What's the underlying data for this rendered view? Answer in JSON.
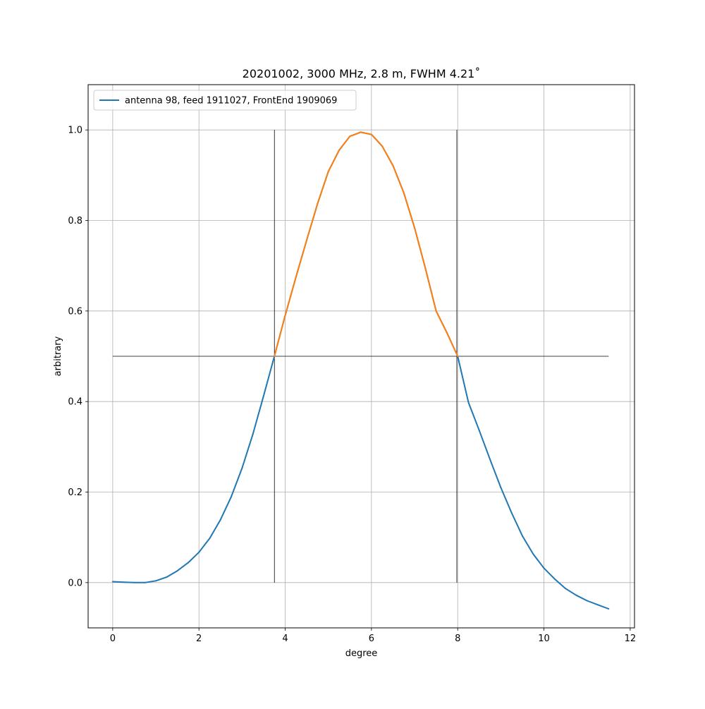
{
  "chart_data": {
    "type": "line",
    "title": "20201002, 3000 MHz, 2.8 m, FWHM 4.21˚",
    "xlabel": "degree",
    "ylabel": "arbitrary",
    "xlim": [
      -0.57,
      12.1
    ],
    "ylim": [
      -0.1,
      1.1
    ],
    "x_ticks": [
      0,
      2,
      4,
      6,
      8,
      10,
      12
    ],
    "x_tick_labels": [
      "0",
      "2",
      "4",
      "6",
      "8",
      "10",
      "12"
    ],
    "y_ticks": [
      0.0,
      0.2,
      0.4,
      0.6,
      0.8,
      1.0
    ],
    "y_tick_labels": [
      "0.0",
      "0.2",
      "0.4",
      "0.6",
      "0.8",
      "1.0"
    ],
    "grid": true,
    "legend_position": "top-left",
    "series": [
      {
        "name": "antenna 98, feed 1911027, FrontEnd 1909069",
        "color": "#1f77b4",
        "x": [
          0,
          0.25,
          0.5,
          0.75,
          1.0,
          1.25,
          1.5,
          1.75,
          2.0,
          2.25,
          2.5,
          2.75,
          3.0,
          3.25,
          3.5,
          3.75,
          4.0,
          4.25,
          4.5,
          4.75,
          5.0,
          5.25,
          5.5,
          5.75,
          6.0,
          6.25,
          6.5,
          6.75,
          7.0,
          7.25,
          7.5,
          7.75,
          8.0,
          8.25,
          8.5,
          8.75,
          9.0,
          9.25,
          9.5,
          9.75,
          10.0,
          10.25,
          10.5,
          10.75,
          11.0,
          11.25,
          11.5
        ],
        "y": [
          0.002,
          0.001,
          0.0,
          0.0,
          0.004,
          0.012,
          0.026,
          0.044,
          0.067,
          0.098,
          0.139,
          0.19,
          0.253,
          0.328,
          0.413,
          0.5,
          0.59,
          0.675,
          0.757,
          0.837,
          0.908,
          0.955,
          0.986,
          0.995,
          0.99,
          0.964,
          0.921,
          0.861,
          0.784,
          0.695,
          0.6,
          0.552,
          0.5,
          0.398,
          0.336,
          0.272,
          0.21,
          0.154,
          0.103,
          0.063,
          0.032,
          0.008,
          -0.013,
          -0.028,
          -0.04,
          -0.049,
          -0.058
        ]
      },
      {
        "name": "",
        "color": "#ff7f0e",
        "x": [
          3.75,
          4.0,
          4.25,
          4.5,
          4.75,
          5.0,
          5.25,
          5.5,
          5.75,
          6.0,
          6.25,
          6.5,
          6.75,
          7.0,
          7.25,
          7.5,
          7.75,
          8.0
        ],
        "y": [
          0.5,
          0.59,
          0.675,
          0.757,
          0.837,
          0.908,
          0.955,
          0.986,
          0.995,
          0.99,
          0.964,
          0.921,
          0.861,
          0.784,
          0.695,
          0.6,
          0.552,
          0.5
        ]
      }
    ],
    "reference_lines": [
      {
        "orientation": "horizontal",
        "y": 0.5,
        "from": 0,
        "to": 11.5,
        "color": "#000000"
      },
      {
        "orientation": "vertical",
        "x": 3.75,
        "from": 0.0,
        "to": 1.0,
        "color": "#000000"
      },
      {
        "orientation": "vertical",
        "x": 7.98,
        "from": 0.0,
        "to": 1.0,
        "color": "#000000"
      }
    ]
  }
}
